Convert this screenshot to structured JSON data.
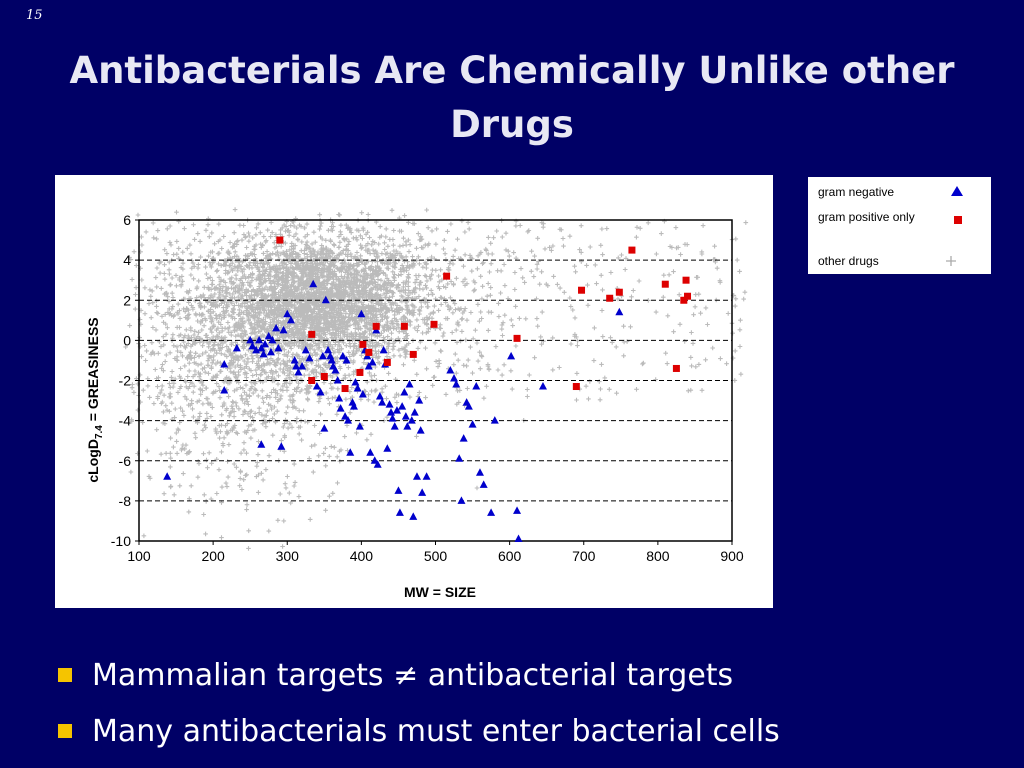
{
  "slide_number": "15",
  "title": "Antibacterials Are Chemically Unlike other Drugs",
  "bullets": [
    "Mammalian targets ≠ antibacterial targets",
    "Many antibacterials must enter bacterial cells"
  ],
  "colors": {
    "background": "#000066",
    "bullet_marker": "#f5c400",
    "gram_negative": "#0000cc",
    "gram_positive_only": "#dd0000",
    "other_drugs": "#bbbbbb"
  },
  "chart_data": {
    "type": "scatter",
    "xlabel": "MW = SIZE",
    "ylabel_main": "cLogD",
    "ylabel_subscript": "7.4",
    "ylabel_suffix": " = GREASINESS",
    "xlim": [
      100,
      900
    ],
    "ylim": [
      -10,
      6
    ],
    "xticks": [
      100,
      200,
      300,
      400,
      500,
      600,
      700,
      800,
      900
    ],
    "yticks": [
      -10,
      -8,
      -6,
      -4,
      -2,
      0,
      2,
      4,
      6
    ],
    "grid": "horizontal-dashed",
    "legend_position": "right-outside",
    "series": [
      {
        "name": "gram negative",
        "marker": "triangle",
        "color": "#0000cc",
        "points": [
          [
            138,
            -6.8
          ],
          [
            215,
            -1.2
          ],
          [
            215,
            -2.5
          ],
          [
            232,
            -0.4
          ],
          [
            250,
            0.0
          ],
          [
            253,
            -0.3
          ],
          [
            258,
            -0.5
          ],
          [
            262,
            0.0
          ],
          [
            265,
            -0.4
          ],
          [
            268,
            -0.7
          ],
          [
            270,
            -0.2
          ],
          [
            275,
            0.2
          ],
          [
            278,
            -0.6
          ],
          [
            280,
            0.0
          ],
          [
            285,
            0.6
          ],
          [
            288,
            -0.4
          ],
          [
            265,
            -5.2
          ],
          [
            292,
            -5.3
          ],
          [
            295,
            0.5
          ],
          [
            300,
            1.3
          ],
          [
            305,
            1.0
          ],
          [
            310,
            -1.0
          ],
          [
            312,
            -1.3
          ],
          [
            315,
            -1.6
          ],
          [
            320,
            -1.3
          ],
          [
            325,
            -0.5
          ],
          [
            330,
            -0.9
          ],
          [
            335,
            2.8
          ],
          [
            340,
            -2.3
          ],
          [
            345,
            -2.6
          ],
          [
            348,
            -0.8
          ],
          [
            350,
            -4.4
          ],
          [
            352,
            2.0
          ],
          [
            355,
            -0.5
          ],
          [
            358,
            -0.8
          ],
          [
            360,
            -1.0
          ],
          [
            362,
            -1.3
          ],
          [
            365,
            -1.5
          ],
          [
            368,
            -2.0
          ],
          [
            370,
            -2.9
          ],
          [
            372,
            -3.4
          ],
          [
            375,
            -0.8
          ],
          [
            378,
            -3.8
          ],
          [
            380,
            -1.0
          ],
          [
            382,
            -4.0
          ],
          [
            385,
            -5.6
          ],
          [
            388,
            -3.1
          ],
          [
            390,
            -3.3
          ],
          [
            392,
            -2.1
          ],
          [
            395,
            -2.4
          ],
          [
            398,
            -4.3
          ],
          [
            400,
            1.3
          ],
          [
            402,
            -2.7
          ],
          [
            405,
            -0.5
          ],
          [
            408,
            -0.8
          ],
          [
            410,
            -1.3
          ],
          [
            412,
            -5.6
          ],
          [
            415,
            -1.1
          ],
          [
            418,
            -6.0
          ],
          [
            420,
            0.5
          ],
          [
            422,
            -6.2
          ],
          [
            425,
            -2.8
          ],
          [
            428,
            -3.1
          ],
          [
            430,
            -0.5
          ],
          [
            432,
            -1.2
          ],
          [
            435,
            -5.4
          ],
          [
            438,
            -3.2
          ],
          [
            440,
            -3.6
          ],
          [
            442,
            -3.9
          ],
          [
            445,
            -4.3
          ],
          [
            448,
            -3.5
          ],
          [
            450,
            -7.5
          ],
          [
            452,
            -8.6
          ],
          [
            455,
            -3.3
          ],
          [
            458,
            -2.6
          ],
          [
            460,
            -3.8
          ],
          [
            462,
            -4.3
          ],
          [
            465,
            -2.2
          ],
          [
            468,
            -4.0
          ],
          [
            470,
            -8.8
          ],
          [
            472,
            -3.6
          ],
          [
            475,
            -6.8
          ],
          [
            478,
            -3.0
          ],
          [
            480,
            -4.5
          ],
          [
            482,
            -7.6
          ],
          [
            488,
            -6.8
          ],
          [
            520,
            -1.5
          ],
          [
            525,
            -1.9
          ],
          [
            528,
            -2.2
          ],
          [
            532,
            -5.9
          ],
          [
            535,
            -8.0
          ],
          [
            538,
            -4.9
          ],
          [
            542,
            -3.1
          ],
          [
            545,
            -3.3
          ],
          [
            550,
            -4.2
          ],
          [
            555,
            -2.3
          ],
          [
            560,
            -6.6
          ],
          [
            565,
            -7.2
          ],
          [
            575,
            -8.6
          ],
          [
            580,
            -4.0
          ],
          [
            602,
            -0.8
          ],
          [
            610,
            -8.5
          ],
          [
            612,
            -9.9
          ],
          [
            645,
            -2.3
          ],
          [
            748,
            1.4
          ]
        ]
      },
      {
        "name": "gram positive only",
        "marker": "square",
        "color": "#dd0000",
        "points": [
          [
            290,
            5.0
          ],
          [
            333,
            0.3
          ],
          [
            333,
            -2.0
          ],
          [
            350,
            -1.8
          ],
          [
            378,
            -2.4
          ],
          [
            398,
            -1.6
          ],
          [
            402,
            -0.2
          ],
          [
            410,
            -0.6
          ],
          [
            420,
            0.7
          ],
          [
            435,
            -1.1
          ],
          [
            458,
            0.7
          ],
          [
            470,
            -0.7
          ],
          [
            498,
            0.8
          ],
          [
            515,
            3.2
          ],
          [
            610,
            0.1
          ],
          [
            690,
            -2.3
          ],
          [
            697,
            2.5
          ],
          [
            735,
            2.1
          ],
          [
            748,
            2.4
          ],
          [
            765,
            4.5
          ],
          [
            810,
            2.8
          ],
          [
            825,
            -1.4
          ],
          [
            835,
            2.0
          ],
          [
            840,
            2.2
          ],
          [
            838,
            3.0
          ]
        ]
      },
      {
        "name": "other drugs",
        "marker": "plus",
        "color": "#bbbbbb",
        "points": [],
        "note": ""
      }
    ]
  }
}
